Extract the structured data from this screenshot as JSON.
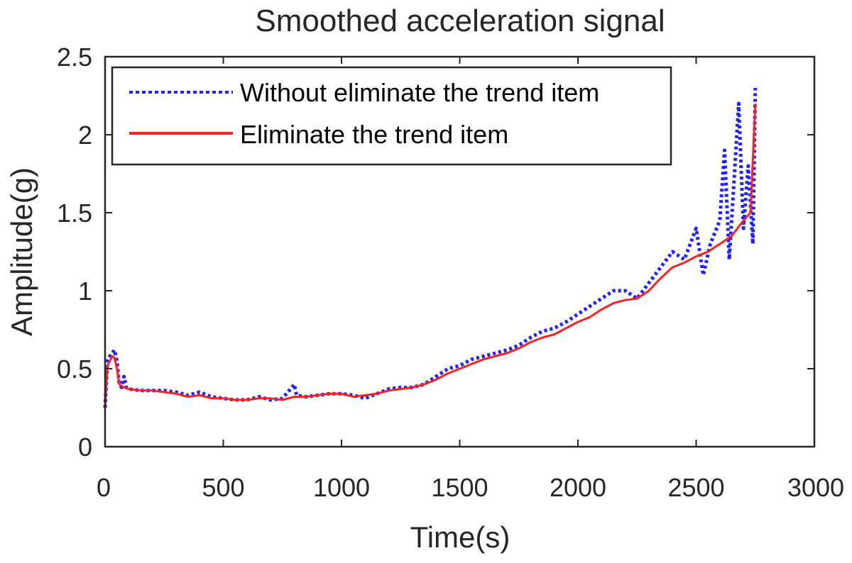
{
  "chart_data": {
    "type": "line",
    "title": "Smoothed acceleration signal",
    "xlabel": "Time(s)",
    "ylabel": "Amplitude(g)",
    "xlim": [
      0,
      3000
    ],
    "ylim": [
      0,
      2.5
    ],
    "xticks": [
      0,
      500,
      1000,
      1500,
      2000,
      2500,
      3000
    ],
    "yticks": [
      0,
      0.5,
      1,
      1.5,
      2,
      2.5
    ],
    "xtick_labels": [
      "0",
      "500",
      "1000",
      "1500",
      "2000",
      "2500",
      "3000"
    ],
    "ytick_labels": [
      "0",
      "0.5",
      "1",
      "1.5",
      "2",
      "2.5"
    ],
    "grid": false,
    "legend_position": "top-left",
    "series": [
      {
        "name": "Without eliminate the trend item",
        "color": "#1f1fff",
        "style": "dotted",
        "x": [
          0,
          10,
          20,
          30,
          40,
          50,
          60,
          70,
          80,
          90,
          100,
          150,
          200,
          250,
          300,
          350,
          400,
          450,
          500,
          550,
          600,
          650,
          700,
          750,
          790,
          800,
          810,
          850,
          900,
          950,
          1000,
          1050,
          1100,
          1150,
          1200,
          1250,
          1300,
          1350,
          1400,
          1450,
          1500,
          1550,
          1600,
          1650,
          1700,
          1750,
          1800,
          1850,
          1900,
          1950,
          2000,
          2050,
          2100,
          2150,
          2200,
          2250,
          2300,
          2350,
          2400,
          2450,
          2500,
          2530,
          2560,
          2600,
          2620,
          2640,
          2660,
          2680,
          2700,
          2720,
          2740,
          2750
        ],
        "y": [
          0.25,
          0.55,
          0.58,
          0.6,
          0.62,
          0.55,
          0.4,
          0.38,
          0.45,
          0.38,
          0.37,
          0.36,
          0.36,
          0.36,
          0.35,
          0.33,
          0.35,
          0.32,
          0.31,
          0.3,
          0.3,
          0.32,
          0.3,
          0.31,
          0.38,
          0.4,
          0.33,
          0.32,
          0.33,
          0.34,
          0.34,
          0.33,
          0.31,
          0.34,
          0.37,
          0.38,
          0.38,
          0.4,
          0.45,
          0.5,
          0.52,
          0.56,
          0.58,
          0.6,
          0.62,
          0.65,
          0.7,
          0.74,
          0.76,
          0.8,
          0.85,
          0.9,
          0.95,
          1.0,
          1.0,
          0.95,
          1.05,
          1.15,
          1.25,
          1.2,
          1.4,
          1.1,
          1.3,
          1.45,
          1.9,
          1.2,
          1.7,
          2.2,
          1.4,
          1.8,
          1.3,
          2.3
        ]
      },
      {
        "name": "Eliminate the trend item",
        "color": "#ff2020",
        "style": "solid",
        "x": [
          0,
          10,
          20,
          30,
          40,
          50,
          60,
          80,
          100,
          150,
          200,
          250,
          300,
          350,
          400,
          450,
          500,
          550,
          600,
          650,
          700,
          750,
          800,
          850,
          900,
          950,
          1000,
          1050,
          1100,
          1150,
          1200,
          1250,
          1300,
          1350,
          1400,
          1450,
          1500,
          1550,
          1600,
          1650,
          1700,
          1750,
          1800,
          1850,
          1900,
          1950,
          2000,
          2050,
          2100,
          2150,
          2200,
          2250,
          2300,
          2350,
          2400,
          2450,
          2500,
          2550,
          2600,
          2650,
          2700,
          2730,
          2750
        ],
        "y": [
          0.25,
          0.52,
          0.55,
          0.58,
          0.57,
          0.5,
          0.4,
          0.38,
          0.37,
          0.36,
          0.36,
          0.35,
          0.34,
          0.32,
          0.33,
          0.31,
          0.31,
          0.3,
          0.3,
          0.31,
          0.31,
          0.3,
          0.32,
          0.32,
          0.33,
          0.34,
          0.34,
          0.32,
          0.33,
          0.34,
          0.36,
          0.37,
          0.38,
          0.4,
          0.43,
          0.47,
          0.5,
          0.53,
          0.56,
          0.58,
          0.6,
          0.63,
          0.67,
          0.7,
          0.72,
          0.76,
          0.8,
          0.83,
          0.88,
          0.92,
          0.94,
          0.95,
          1.0,
          1.08,
          1.15,
          1.18,
          1.22,
          1.25,
          1.3,
          1.35,
          1.45,
          1.5,
          2.2
        ]
      }
    ]
  }
}
